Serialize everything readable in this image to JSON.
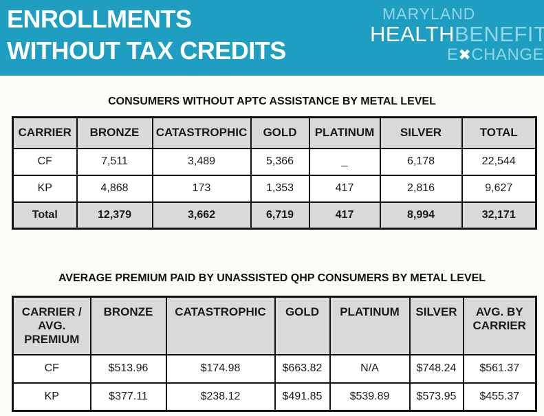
{
  "colors": {
    "accent": "#1E9FC2",
    "logo-light": "#93D5E7",
    "header-gray": "#D9D9D9"
  },
  "banner": {
    "title_line1": "ENROLLMENTS",
    "title_line2": "WITHOUT TAX CREDITS",
    "logo": {
      "line1": "MARYLAND",
      "line2_part1": "HEALTH",
      "line2_part2": "BENEFIT",
      "line3_part1": "E",
      "line3_x": "✖",
      "line3_part2": "CHANGE"
    }
  },
  "table1": {
    "title": "CONSUMERS WITHOUT APTC ASSISTANCE BY METAL LEVEL",
    "headers": [
      "CARRIER",
      "BRONZE",
      "CATASTROPHIC",
      "GOLD",
      "PLATINUM",
      "SILVER",
      "TOTAL"
    ],
    "rows": [
      [
        "CF",
        "7,511",
        "3,489",
        "5,366",
        "_",
        "6,178",
        "22,544"
      ],
      [
        "KP",
        "4,868",
        "173",
        "1,353",
        "417",
        "2,816",
        "9,627"
      ],
      [
        "Total",
        "12,379",
        "3,662",
        "6,719",
        "417",
        "8,994",
        "32,171"
      ]
    ]
  },
  "table2": {
    "title": "AVERAGE PREMIUM PAID BY UNASSISTED QHP CONSUMERS BY METAL LEVEL",
    "headers": [
      "CARRIER / AVG. PREMIUM",
      "BRONZE",
      "CATASTROPHIC",
      "GOLD",
      "PLATINUM",
      "SILVER",
      "AVG. BY CARRIER"
    ],
    "rows": [
      [
        "CF",
        "$513.96",
        "$174.98",
        "$663.82",
        "N/A",
        "$748.24",
        "$561.37"
      ],
      [
        "KP",
        "$377.11",
        "$238.12",
        "$491.85",
        "$539.89",
        "$573.95",
        "$455.37"
      ]
    ]
  }
}
